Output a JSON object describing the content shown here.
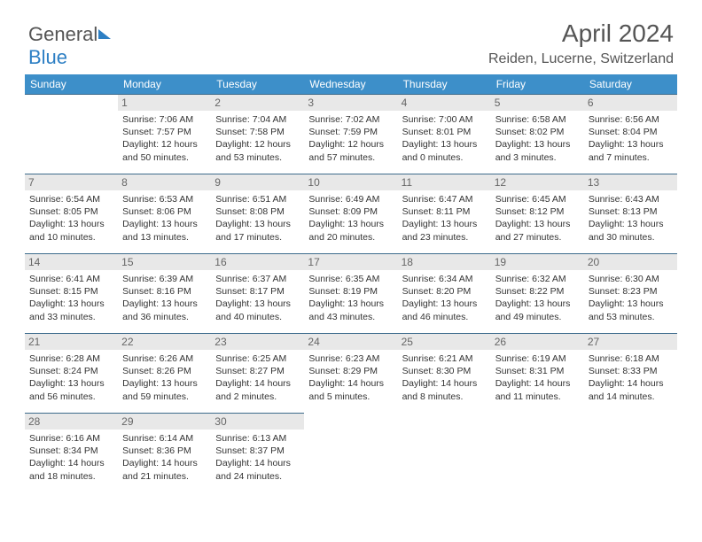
{
  "logo": {
    "part1": "General",
    "part2": "Blue"
  },
  "title": "April 2024",
  "subtitle": "Reiden, Lucerne, Switzerland",
  "weekdays": [
    "Sunday",
    "Monday",
    "Tuesday",
    "Wednesday",
    "Thursday",
    "Friday",
    "Saturday"
  ],
  "colors": {
    "header_bg": "#3d8fc9",
    "header_text": "#ffffff",
    "daynum_bg": "#e8e8e8",
    "cell_border": "#3d6b8c",
    "text": "#333333",
    "title_text": "#555555",
    "logo_blue": "#2d7fc4"
  },
  "blank_before": 0,
  "days": [
    {
      "n": "",
      "blank": true
    },
    {
      "n": "1",
      "sr": "Sunrise: 7:06 AM",
      "ss": "Sunset: 7:57 PM",
      "dl1": "Daylight: 12 hours",
      "dl2": "and 50 minutes."
    },
    {
      "n": "2",
      "sr": "Sunrise: 7:04 AM",
      "ss": "Sunset: 7:58 PM",
      "dl1": "Daylight: 12 hours",
      "dl2": "and 53 minutes."
    },
    {
      "n": "3",
      "sr": "Sunrise: 7:02 AM",
      "ss": "Sunset: 7:59 PM",
      "dl1": "Daylight: 12 hours",
      "dl2": "and 57 minutes."
    },
    {
      "n": "4",
      "sr": "Sunrise: 7:00 AM",
      "ss": "Sunset: 8:01 PM",
      "dl1": "Daylight: 13 hours",
      "dl2": "and 0 minutes."
    },
    {
      "n": "5",
      "sr": "Sunrise: 6:58 AM",
      "ss": "Sunset: 8:02 PM",
      "dl1": "Daylight: 13 hours",
      "dl2": "and 3 minutes."
    },
    {
      "n": "6",
      "sr": "Sunrise: 6:56 AM",
      "ss": "Sunset: 8:04 PM",
      "dl1": "Daylight: 13 hours",
      "dl2": "and 7 minutes."
    },
    {
      "n": "7",
      "sr": "Sunrise: 6:54 AM",
      "ss": "Sunset: 8:05 PM",
      "dl1": "Daylight: 13 hours",
      "dl2": "and 10 minutes."
    },
    {
      "n": "8",
      "sr": "Sunrise: 6:53 AM",
      "ss": "Sunset: 8:06 PM",
      "dl1": "Daylight: 13 hours",
      "dl2": "and 13 minutes."
    },
    {
      "n": "9",
      "sr": "Sunrise: 6:51 AM",
      "ss": "Sunset: 8:08 PM",
      "dl1": "Daylight: 13 hours",
      "dl2": "and 17 minutes."
    },
    {
      "n": "10",
      "sr": "Sunrise: 6:49 AM",
      "ss": "Sunset: 8:09 PM",
      "dl1": "Daylight: 13 hours",
      "dl2": "and 20 minutes."
    },
    {
      "n": "11",
      "sr": "Sunrise: 6:47 AM",
      "ss": "Sunset: 8:11 PM",
      "dl1": "Daylight: 13 hours",
      "dl2": "and 23 minutes."
    },
    {
      "n": "12",
      "sr": "Sunrise: 6:45 AM",
      "ss": "Sunset: 8:12 PM",
      "dl1": "Daylight: 13 hours",
      "dl2": "and 27 minutes."
    },
    {
      "n": "13",
      "sr": "Sunrise: 6:43 AM",
      "ss": "Sunset: 8:13 PM",
      "dl1": "Daylight: 13 hours",
      "dl2": "and 30 minutes."
    },
    {
      "n": "14",
      "sr": "Sunrise: 6:41 AM",
      "ss": "Sunset: 8:15 PM",
      "dl1": "Daylight: 13 hours",
      "dl2": "and 33 minutes."
    },
    {
      "n": "15",
      "sr": "Sunrise: 6:39 AM",
      "ss": "Sunset: 8:16 PM",
      "dl1": "Daylight: 13 hours",
      "dl2": "and 36 minutes."
    },
    {
      "n": "16",
      "sr": "Sunrise: 6:37 AM",
      "ss": "Sunset: 8:17 PM",
      "dl1": "Daylight: 13 hours",
      "dl2": "and 40 minutes."
    },
    {
      "n": "17",
      "sr": "Sunrise: 6:35 AM",
      "ss": "Sunset: 8:19 PM",
      "dl1": "Daylight: 13 hours",
      "dl2": "and 43 minutes."
    },
    {
      "n": "18",
      "sr": "Sunrise: 6:34 AM",
      "ss": "Sunset: 8:20 PM",
      "dl1": "Daylight: 13 hours",
      "dl2": "and 46 minutes."
    },
    {
      "n": "19",
      "sr": "Sunrise: 6:32 AM",
      "ss": "Sunset: 8:22 PM",
      "dl1": "Daylight: 13 hours",
      "dl2": "and 49 minutes."
    },
    {
      "n": "20",
      "sr": "Sunrise: 6:30 AM",
      "ss": "Sunset: 8:23 PM",
      "dl1": "Daylight: 13 hours",
      "dl2": "and 53 minutes."
    },
    {
      "n": "21",
      "sr": "Sunrise: 6:28 AM",
      "ss": "Sunset: 8:24 PM",
      "dl1": "Daylight: 13 hours",
      "dl2": "and 56 minutes."
    },
    {
      "n": "22",
      "sr": "Sunrise: 6:26 AM",
      "ss": "Sunset: 8:26 PM",
      "dl1": "Daylight: 13 hours",
      "dl2": "and 59 minutes."
    },
    {
      "n": "23",
      "sr": "Sunrise: 6:25 AM",
      "ss": "Sunset: 8:27 PM",
      "dl1": "Daylight: 14 hours",
      "dl2": "and 2 minutes."
    },
    {
      "n": "24",
      "sr": "Sunrise: 6:23 AM",
      "ss": "Sunset: 8:29 PM",
      "dl1": "Daylight: 14 hours",
      "dl2": "and 5 minutes."
    },
    {
      "n": "25",
      "sr": "Sunrise: 6:21 AM",
      "ss": "Sunset: 8:30 PM",
      "dl1": "Daylight: 14 hours",
      "dl2": "and 8 minutes."
    },
    {
      "n": "26",
      "sr": "Sunrise: 6:19 AM",
      "ss": "Sunset: 8:31 PM",
      "dl1": "Daylight: 14 hours",
      "dl2": "and 11 minutes."
    },
    {
      "n": "27",
      "sr": "Sunrise: 6:18 AM",
      "ss": "Sunset: 8:33 PM",
      "dl1": "Daylight: 14 hours",
      "dl2": "and 14 minutes."
    },
    {
      "n": "28",
      "sr": "Sunrise: 6:16 AM",
      "ss": "Sunset: 8:34 PM",
      "dl1": "Daylight: 14 hours",
      "dl2": "and 18 minutes."
    },
    {
      "n": "29",
      "sr": "Sunrise: 6:14 AM",
      "ss": "Sunset: 8:36 PM",
      "dl1": "Daylight: 14 hours",
      "dl2": "and 21 minutes."
    },
    {
      "n": "30",
      "sr": "Sunrise: 6:13 AM",
      "ss": "Sunset: 8:37 PM",
      "dl1": "Daylight: 14 hours",
      "dl2": "and 24 minutes."
    }
  ]
}
